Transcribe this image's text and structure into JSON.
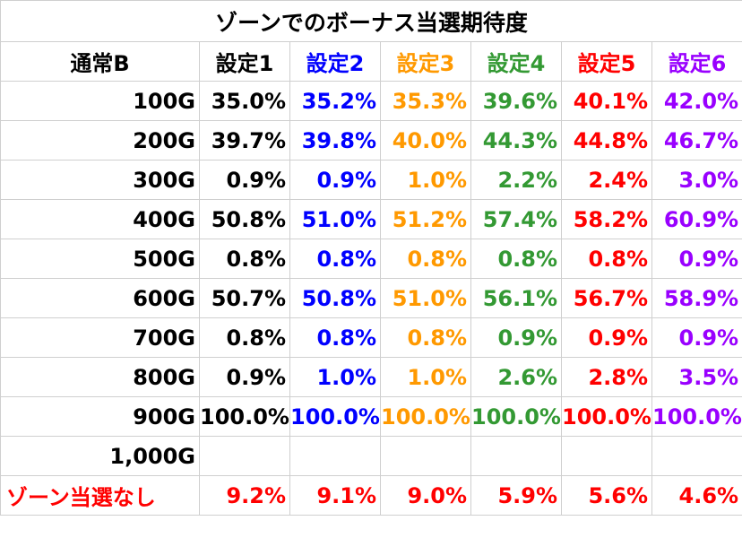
{
  "title": "ゾーンでのボーナス当選期待度",
  "corner": "通常B",
  "settings": [
    {
      "label": "設定1",
      "color": "#000000"
    },
    {
      "label": "設定2",
      "color": "#0000ff"
    },
    {
      "label": "設定3",
      "color": "#ff9900"
    },
    {
      "label": "設定4",
      "color": "#339933"
    },
    {
      "label": "設定5",
      "color": "#ff0000"
    },
    {
      "label": "設定6",
      "color": "#9900ff"
    }
  ],
  "rows": [
    {
      "label": "100G",
      "values": [
        "35.0%",
        "35.2%",
        "35.3%",
        "39.6%",
        "40.1%",
        "42.0%"
      ]
    },
    {
      "label": "200G",
      "values": [
        "39.7%",
        "39.8%",
        "40.0%",
        "44.3%",
        "44.8%",
        "46.7%"
      ]
    },
    {
      "label": "300G",
      "values": [
        "0.9%",
        "0.9%",
        "1.0%",
        "2.2%",
        "2.4%",
        "3.0%"
      ]
    },
    {
      "label": "400G",
      "values": [
        "50.8%",
        "51.0%",
        "51.2%",
        "57.4%",
        "58.2%",
        "60.9%"
      ]
    },
    {
      "label": "500G",
      "values": [
        "0.8%",
        "0.8%",
        "0.8%",
        "0.8%",
        "0.8%",
        "0.9%"
      ]
    },
    {
      "label": "600G",
      "values": [
        "50.7%",
        "50.8%",
        "51.0%",
        "56.1%",
        "56.7%",
        "58.9%"
      ]
    },
    {
      "label": "700G",
      "values": [
        "0.8%",
        "0.8%",
        "0.8%",
        "0.9%",
        "0.9%",
        "0.9%"
      ]
    },
    {
      "label": "800G",
      "values": [
        "0.9%",
        "1.0%",
        "1.0%",
        "2.6%",
        "2.8%",
        "3.5%"
      ]
    },
    {
      "label": "900G",
      "values": [
        "100.0%",
        "100.0%",
        "100.0%",
        "100.0%",
        "100.0%",
        "100.0%"
      ]
    },
    {
      "label": "1,000G",
      "values": [
        "",
        "",
        "",
        "",
        "",
        ""
      ]
    }
  ],
  "no_zone": {
    "label": "ゾーン当選なし",
    "color": "#ff0000",
    "values": [
      "9.2%",
      "9.1%",
      "9.0%",
      "5.9%",
      "5.6%",
      "4.6%"
    ]
  }
}
